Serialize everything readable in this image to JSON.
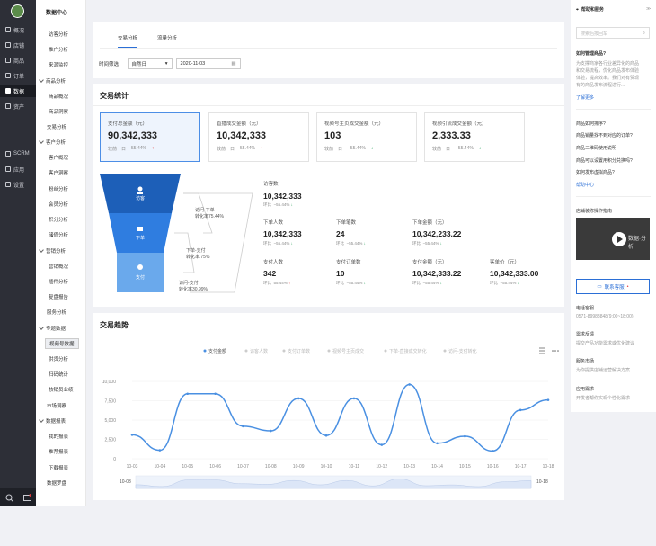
{
  "nav1": {
    "items": [
      {
        "label": "概况",
        "icon": "monitor-icon"
      },
      {
        "label": "店铺",
        "icon": "store-icon"
      },
      {
        "label": "商品",
        "icon": "tag-icon"
      },
      {
        "label": "订单",
        "icon": "order-icon"
      },
      {
        "label": "数据",
        "icon": "chart-icon"
      },
      {
        "label": "资产",
        "icon": "asset-icon"
      },
      {
        "label": "SCRM",
        "icon": "scrm-icon"
      },
      {
        "label": "应用",
        "icon": "apps-icon"
      },
      {
        "label": "设置",
        "icon": "gear-icon"
      }
    ]
  },
  "nav2": {
    "title": "数据中心",
    "items": [
      "访客分析",
      "推广分析",
      "来源监控",
      "商品分析",
      "商品概况",
      "商品洞察",
      "交易分析",
      "客户分析",
      "客户概况",
      "客户洞察",
      "粉丝分析",
      "会员分析",
      "积分分析",
      "储值分析",
      "营销分析",
      "营销概况",
      "插件分析",
      "复盘报告",
      "服务分析",
      "专题数据",
      "视频号数据",
      "供货分析",
      "扫码统计",
      "核销员业绩",
      "市场洞察",
      "数据报表",
      "我的报表",
      "推荐报表",
      "下载报表",
      "数据罗盘"
    ]
  },
  "tabs": [
    "交易分析",
    "流量分析"
  ],
  "filter": {
    "label": "时间筛选：",
    "period": "自然日",
    "date": "2020-11-03"
  },
  "section": {
    "title": "交易统计"
  },
  "stats": [
    {
      "label": "支付总金额（元）",
      "value": "90,342,333",
      "cmp": "较前一日",
      "pct": "55.44%"
    },
    {
      "label": "直播成交金额（元）",
      "value": "10,342,333",
      "cmp": "较前一日",
      "pct": "55.44%"
    },
    {
      "label": "视频号主页成交金额（元）",
      "value": "103",
      "cmp": "较前一日",
      "pct": "−55.44%"
    },
    {
      "label": "视频引流成交金额（元）",
      "value": "2,333.33",
      "cmp": "较前一日",
      "pct": "−55.44%"
    }
  ],
  "funnel": {
    "stages": [
      "访客",
      "下单",
      "支付"
    ],
    "rate1": [
      "访问-下单",
      "转化率75.44%"
    ],
    "rate2": [
      "下单-支付",
      "转化率.75%"
    ],
    "rate3": [
      "访问-支付",
      "转化率30.99%"
    ]
  },
  "metrics": [
    {
      "label": "访客数",
      "value": "10,342,333",
      "cmp": "环比",
      "pct": "−55.44%"
    },
    {
      "label": "下单人数",
      "value": "10,342,333",
      "cmp": "环比",
      "pct": "−55.44%"
    },
    {
      "label": "下单笔数",
      "value": "24",
      "cmp": "环比",
      "pct": "−55.44%"
    },
    {
      "label": "下单金额（元）",
      "value": "10,342,233.22",
      "cmp": "环比",
      "pct": "−55.44%"
    },
    {
      "label": "支付人数",
      "value": "342",
      "cmp": "环比",
      "pct": "55.44%"
    },
    {
      "label": "支付订单数",
      "value": "10",
      "cmp": "环比",
      "pct": "−55.44%"
    },
    {
      "label": "支付金额（元）",
      "value": "10,342,333.22",
      "cmp": "环比",
      "pct": "−55.44%"
    },
    {
      "label": "客单价（元）",
      "value": "10,342,333.00",
      "cmp": "环比",
      "pct": "−55.44%"
    }
  ],
  "trend": {
    "title": "交易趋势",
    "range_start": "10-03",
    "range_end": "10-18"
  },
  "chart_data": {
    "type": "line",
    "legend": [
      "支付金额",
      "访客人数",
      "支付订单数",
      "视频号主页成交",
      "下单-直接成交转化",
      "访问-支付转化"
    ],
    "legend_placement": "top",
    "x": [
      "10-03",
      "10-04",
      "10-05",
      "10-06",
      "10-07",
      "10-08",
      "10-09",
      "10-10",
      "10-11",
      "10-12",
      "10-13",
      "10-14",
      "10-15",
      "10-16",
      "10-17",
      "10-18"
    ],
    "series": [
      {
        "name": "支付金额",
        "values": [
          3100,
          1100,
          8400,
          8400,
          4200,
          3600,
          7800,
          3000,
          7800,
          1800,
          9600,
          2000,
          2900,
          1000,
          6300,
          7600
        ]
      }
    ],
    "yticks": [
      "0",
      "2,500",
      "5,000",
      "7,500",
      "10,000"
    ],
    "ylim": [
      0,
      10000
    ],
    "grid": true,
    "color": "#4a90e2"
  },
  "rightpanel": {
    "title": "帮助和服务",
    "search_placeholder": "搜索后按回车",
    "q1": "如何管理商品?",
    "q1desc": [
      "为支撑商家各行业差异化的商品",
      "和交易流程，优化商品发布体验",
      "体验，提高效率。我们对有赞现",
      "有的商品发布流程进行..."
    ],
    "more": "了解更多",
    "faq": [
      "商品如何排序?",
      "商品销量找不到对应的订单?",
      "商品二维码使用说明",
      "商品可以设置用积分兑换吗?",
      "如何发布虚拟商品?"
    ],
    "help_center": "帮助中心",
    "guide": "店铺装修操作指南",
    "video_caption": "数据·分析",
    "contact": "联系客服",
    "phone_title": "电话客服",
    "phone": "0571-89988848(9:00~18:00)",
    "feedback_title": "需求反馈",
    "feedback_desc": "提交产品功能需求或优化建议",
    "market_title": "服务市场",
    "market_desc": "为你提供店铺运营解决方案",
    "app_title": "应用需求",
    "app_desc": "开发者帮你实现个性化需求"
  },
  "colors": {
    "accent": "#2b6fd6",
    "funnel_top": "#1d5fb8",
    "funnel_mid": "#2f7de0",
    "funnel_bot": "#6aa9ec",
    "up": "#e23d3d",
    "down": "#2aa05a"
  }
}
